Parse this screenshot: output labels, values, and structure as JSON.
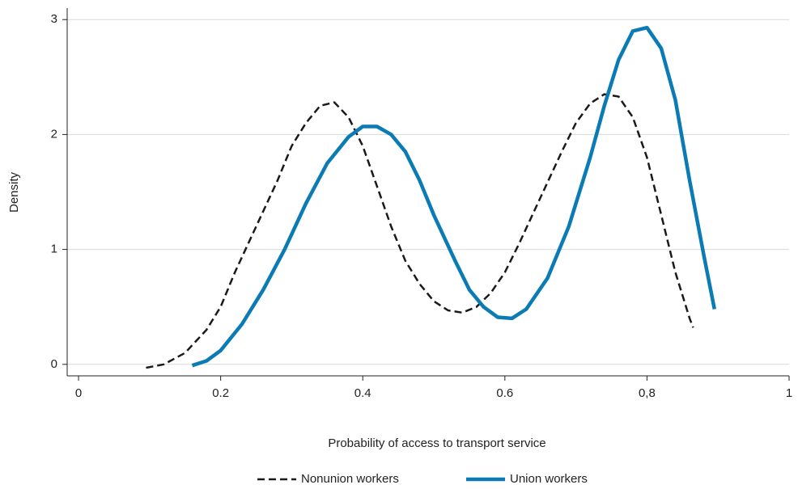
{
  "chart_data": {
    "type": "line",
    "xlabel": "Probability of access to transport service",
    "ylabel": "Density",
    "xlim": [
      -0.016,
      1
    ],
    "ylim": [
      -0.1,
      3.1
    ],
    "xticks": [
      0,
      0.2,
      0.4,
      0.6,
      {
        "value": 0.8,
        "label": "0,8"
      },
      1
    ],
    "yticks": [
      0,
      1,
      2,
      3
    ],
    "grid": true,
    "legend": "bottom",
    "series": [
      {
        "name": "Nonunion workers",
        "color": "#1a1a1a",
        "dash": true,
        "x": [
          0.095,
          0.12,
          0.15,
          0.18,
          0.2,
          0.22,
          0.25,
          0.28,
          0.3,
          0.32,
          0.34,
          0.36,
          0.38,
          0.4,
          0.42,
          0.44,
          0.46,
          0.48,
          0.5,
          0.52,
          0.54,
          0.56,
          0.58,
          0.6,
          0.62,
          0.65,
          0.68,
          0.7,
          0.72,
          0.74,
          0.76,
          0.78,
          0.8,
          0.82,
          0.84,
          0.86,
          0.865
        ],
        "values": [
          -0.03,
          0.0,
          0.1,
          0.3,
          0.5,
          0.8,
          1.2,
          1.6,
          1.9,
          2.1,
          2.25,
          2.28,
          2.15,
          1.9,
          1.55,
          1.2,
          0.9,
          0.7,
          0.55,
          0.47,
          0.45,
          0.5,
          0.62,
          0.8,
          1.05,
          1.45,
          1.85,
          2.1,
          2.27,
          2.35,
          2.33,
          2.15,
          1.8,
          1.3,
          0.8,
          0.4,
          0.32
        ]
      },
      {
        "name": "Union workers",
        "color": "#0a7bb4",
        "dash": false,
        "x": [
          0.16,
          0.18,
          0.2,
          0.23,
          0.26,
          0.29,
          0.32,
          0.35,
          0.38,
          0.4,
          0.42,
          0.44,
          0.46,
          0.48,
          0.5,
          0.53,
          0.55,
          0.57,
          0.59,
          0.61,
          0.63,
          0.66,
          0.69,
          0.72,
          0.74,
          0.76,
          0.78,
          0.8,
          0.82,
          0.84,
          0.86,
          0.88,
          0.895
        ],
        "values": [
          -0.01,
          0.03,
          0.12,
          0.35,
          0.65,
          1.0,
          1.4,
          1.75,
          1.98,
          2.07,
          2.07,
          2.0,
          1.85,
          1.6,
          1.3,
          0.9,
          0.65,
          0.5,
          0.41,
          0.4,
          0.48,
          0.75,
          1.2,
          1.8,
          2.25,
          2.65,
          2.9,
          2.93,
          2.75,
          2.3,
          1.6,
          0.95,
          0.48
        ]
      }
    ]
  }
}
